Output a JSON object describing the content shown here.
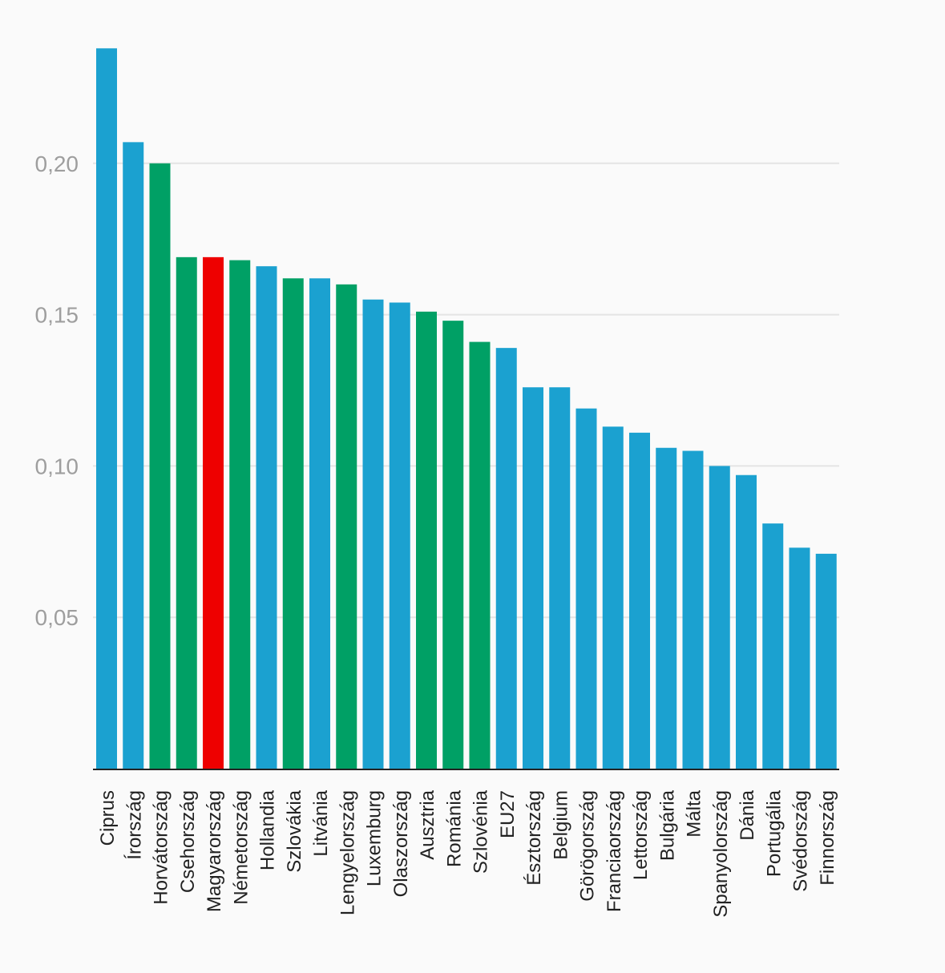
{
  "chart_data": {
    "type": "bar",
    "categories": [
      "Ciprus",
      "Írország",
      "Horvátország",
      "Csehország",
      "Magyarország",
      "Németország",
      "Hollandia",
      "Szlovákia",
      "Litvánia",
      "Lengyelország",
      "Luxemburg",
      "Olaszország",
      "Ausztria",
      "Románia",
      "Szlovénia",
      "EU27",
      "Észtország",
      "Belgium",
      "Görögország",
      "Franciaország",
      "Lettország",
      "Bulgária",
      "Málta",
      "Spanyolország",
      "Dánia",
      "Portugália",
      "Svédország",
      "Finnország"
    ],
    "values": [
      0.238,
      0.207,
      0.2,
      0.169,
      0.169,
      0.168,
      0.166,
      0.162,
      0.162,
      0.16,
      0.155,
      0.154,
      0.151,
      0.148,
      0.141,
      0.139,
      0.126,
      0.126,
      0.119,
      0.113,
      0.111,
      0.106,
      0.105,
      0.1,
      0.097,
      0.081,
      0.073,
      0.071
    ],
    "bar_colors": [
      "#1ba1d0",
      "#1ba1d0",
      "#00a065",
      "#00a065",
      "#ee0000",
      "#00a065",
      "#1ba1d0",
      "#00a065",
      "#1ba1d0",
      "#00a065",
      "#1ba1d0",
      "#1ba1d0",
      "#00a065",
      "#00a065",
      "#00a065",
      "#1ba1d0",
      "#1ba1d0",
      "#1ba1d0",
      "#1ba1d0",
      "#1ba1d0",
      "#1ba1d0",
      "#1ba1d0",
      "#1ba1d0",
      "#1ba1d0",
      "#1ba1d0",
      "#1ba1d0",
      "#1ba1d0",
      "#1ba1d0"
    ],
    "y_ticks": [
      0.05,
      0.1,
      0.15,
      0.2
    ],
    "y_tick_labels": [
      "0,05",
      "0,10",
      "0,15",
      "0,20"
    ],
    "ylim": [
      0,
      0.238
    ],
    "grid": true,
    "legend": "none",
    "title": "",
    "xlabel": "",
    "ylabel": "",
    "colors": {
      "background": "#fafafa",
      "gridline": "#e4e4e4",
      "axis": "#222222"
    }
  }
}
